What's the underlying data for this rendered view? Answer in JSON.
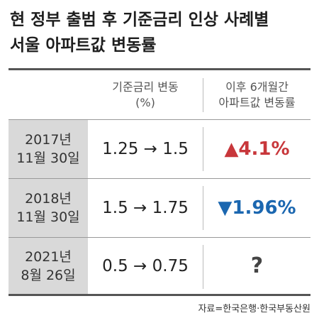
{
  "title": {
    "line1": "현 정부 출범 후 기준금리 인상 사례별",
    "line2": "서울 아파트값 변동률"
  },
  "header": {
    "col_rate_line1": "기준금리 변동",
    "col_rate_line2": "(%)",
    "col_change_line1": "이후 6개월간",
    "col_change_line2": "아파트값 변동률"
  },
  "rows": [
    {
      "date_line1": "2017년",
      "date_line2": "11월 30일",
      "rate_change": "1.25 → 1.5",
      "price_change": "▲4.1%",
      "direction": "up",
      "color": "#c8373b"
    },
    {
      "date_line1": "2018년",
      "date_line2": "11월 30일",
      "rate_change": "1.5 → 1.75",
      "price_change": "▼1.96%",
      "direction": "down",
      "color": "#1b67b0"
    },
    {
      "date_line1": "2021년",
      "date_line2": "8월 26일",
      "rate_change": "0.5 → 0.75",
      "price_change": "?",
      "direction": "unknown",
      "color": "#444444"
    }
  ],
  "source": "자료=한국은행·한국부동산원"
}
